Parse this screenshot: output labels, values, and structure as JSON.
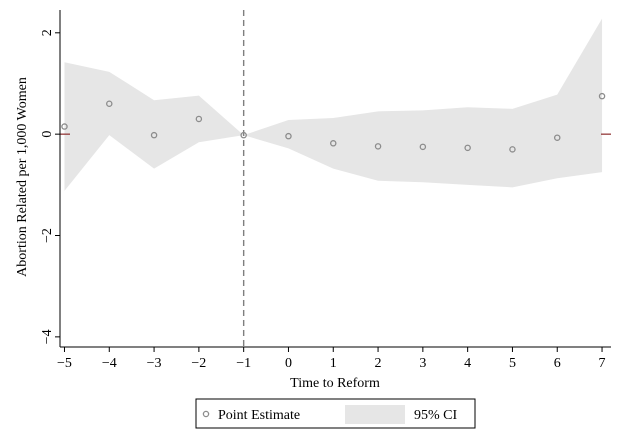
{
  "chart_data": {
    "type": "scatter",
    "xlabel": "Time to Reform",
    "ylabel": "Abortion Related per 1,000 Women",
    "x_ticks": [
      "−5",
      "−4",
      "−3",
      "−2",
      "−1",
      "0",
      "1",
      "2",
      "3",
      "4",
      "5",
      "6",
      "7"
    ],
    "y_ticks": [
      "−4",
      "−2",
      "0",
      "2"
    ],
    "xlim": [
      -5.1,
      7.2
    ],
    "ylim": [
      -4.2,
      2.45
    ],
    "grid": false,
    "reference_line_x": -1,
    "zero_line_y": 0,
    "legend_position": "bottom",
    "series": [
      {
        "name": "Point Estimate",
        "x": [
          -5,
          -4,
          -3,
          -2,
          -1,
          0,
          1,
          2,
          3,
          4,
          5,
          6,
          7
        ],
        "y": [
          0.15,
          0.6,
          -0.02,
          0.3,
          -0.02,
          -0.04,
          -0.18,
          -0.24,
          -0.25,
          -0.27,
          -0.3,
          -0.07,
          0.75
        ]
      },
      {
        "name": "95% CI",
        "x": [
          -5,
          -4,
          -3,
          -2,
          -1,
          0,
          1,
          2,
          3,
          4,
          5,
          6,
          7
        ],
        "lower": [
          -1.12,
          -0.02,
          -0.68,
          -0.16,
          -0.02,
          -0.28,
          -0.68,
          -0.92,
          -0.95,
          -1.0,
          -1.05,
          -0.87,
          -0.75
        ],
        "upper": [
          1.42,
          1.23,
          0.67,
          0.76,
          -0.02,
          0.28,
          0.32,
          0.45,
          0.47,
          0.53,
          0.5,
          0.78,
          2.28
        ]
      }
    ],
    "colors": {
      "ci_fill": "#e6e6e6",
      "point_stroke": "#8c8c8c",
      "ref_line": "#7f7f7f",
      "zero_tick": "#8b2a2a",
      "axis": "#000000"
    }
  }
}
